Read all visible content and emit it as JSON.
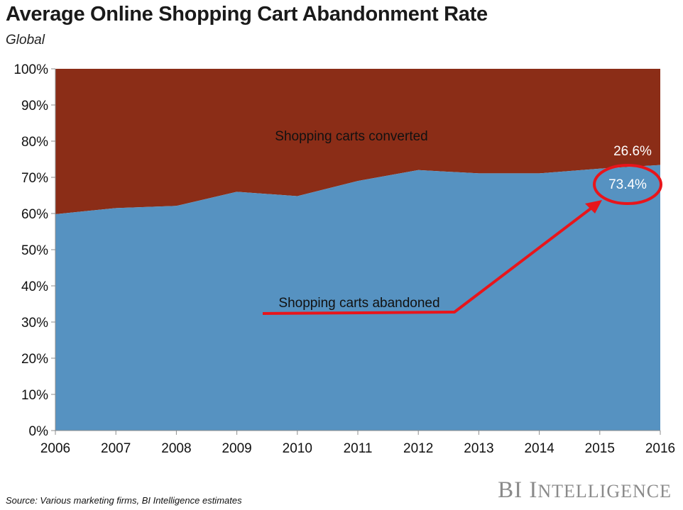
{
  "header": {
    "title": "Average Online Shopping Cart Abandonment Rate",
    "subtitle": "Global"
  },
  "chart_data": {
    "type": "area",
    "stacked": true,
    "x": [
      "2006",
      "2007",
      "2008",
      "2009",
      "2010",
      "2011",
      "2012",
      "2013",
      "2014",
      "2015",
      "2016"
    ],
    "series": [
      {
        "name": "Shopping carts abandoned",
        "values": [
          59.8,
          61.5,
          62.1,
          66.0,
          64.8,
          69.0,
          72.0,
          71.1,
          71.1,
          72.4,
          73.4
        ]
      },
      {
        "name": "Shopping carts converted",
        "values": [
          40.2,
          38.5,
          37.9,
          34.0,
          35.2,
          31.0,
          28.0,
          28.9,
          28.9,
          27.6,
          26.6
        ]
      }
    ],
    "ylim": [
      0,
      100
    ],
    "yticks": [
      "0%",
      "10%",
      "20%",
      "30%",
      "40%",
      "50%",
      "60%",
      "70%",
      "80%",
      "90%",
      "100%"
    ],
    "colors": {
      "abandoned": "#5692c1",
      "converted": "#8b2d17",
      "highlight": "#e8151b"
    },
    "annotations": {
      "converted_label": "Shopping carts converted",
      "abandoned_label": "Shopping carts abandoned",
      "converted_value": "26.6%",
      "abandoned_value": "73.4%"
    },
    "grid": false,
    "legend": "none"
  },
  "footer": {
    "source": "Source: Various marketing firms, BI Intelligence estimates",
    "brand_bi": "BI",
    "brand_rest_first": "I",
    "brand_rest": "NTELLIGENCE"
  }
}
